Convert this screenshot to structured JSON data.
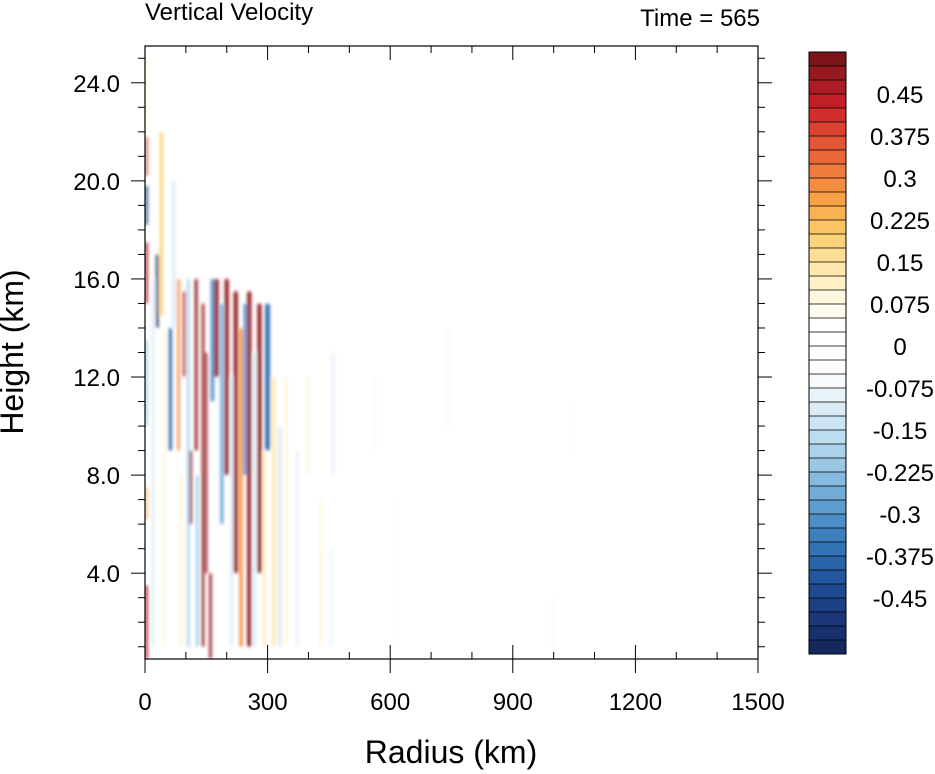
{
  "chart_data": {
    "type": "heatmap",
    "title": "Vertical Velocity",
    "time_label": "Time = 565",
    "xlabel": "Radius (km)",
    "ylabel": "Height (km)",
    "xlim": [
      0,
      1500
    ],
    "ylim": [
      0.5,
      25.5
    ],
    "x_ticks": [
      {
        "value": 0,
        "label": "0"
      },
      {
        "value": 300,
        "label": "300"
      },
      {
        "value": 600,
        "label": "600"
      },
      {
        "value": 900,
        "label": "900"
      },
      {
        "value": 1200,
        "label": "1200"
      },
      {
        "value": 1500,
        "label": "1500"
      }
    ],
    "y_ticks": [
      {
        "value": 4,
        "label": "4.0"
      },
      {
        "value": 8,
        "label": "8.0"
      },
      {
        "value": 12,
        "label": "12.0"
      },
      {
        "value": 16,
        "label": "16.0"
      },
      {
        "value": 20,
        "label": "20.0"
      },
      {
        "value": 24,
        "label": "24.0"
      }
    ],
    "colorbar": {
      "levels_top_to_bottom": [
        0.525,
        0.5,
        0.475,
        0.45,
        0.425,
        0.4,
        0.375,
        0.35,
        0.325,
        0.3,
        0.275,
        0.25,
        0.225,
        0.2,
        0.175,
        0.15,
        0.125,
        0.1,
        0.075,
        0.05,
        0.025,
        0,
        -0.025,
        -0.05,
        -0.075,
        -0.1,
        -0.125,
        -0.15,
        -0.175,
        -0.2,
        -0.225,
        -0.25,
        -0.275,
        -0.3,
        -0.325,
        -0.35,
        -0.375,
        -0.4,
        -0.425,
        -0.45,
        -0.475,
        -0.5,
        -0.525
      ],
      "colors_top_to_bottom": [
        "#7a1418",
        "#941a1f",
        "#ab1c24",
        "#c21f28",
        "#d02f2b",
        "#dc4230",
        "#e45535",
        "#ea6838",
        "#ef7b3c",
        "#f48d40",
        "#f7a045",
        "#f9b251",
        "#fbc363",
        "#fcd27a",
        "#fdde94",
        "#fee8ae",
        "#fff0c6",
        "#fff7dd",
        "#fffcf0",
        "#ffffff",
        "#ffffff",
        "#ffffff",
        "#ffffff",
        "#f6fafd",
        "#e9f3fa",
        "#dbecf7",
        "#cce4f3",
        "#bcdcef",
        "#abd2ea",
        "#99c7e4",
        "#86bade",
        "#72acd7",
        "#5e9dcf",
        "#4c8ec6",
        "#3e80bd",
        "#3372b3",
        "#2963a8",
        "#22569d",
        "#1d4a90",
        "#1b4084",
        "#1a3878",
        "#18306d",
        "#15295f"
      ],
      "labels": [
        {
          "level": 0.45,
          "text": "0.45"
        },
        {
          "level": 0.375,
          "text": "0.375"
        },
        {
          "level": 0.3,
          "text": "0.3"
        },
        {
          "level": 0.225,
          "text": "0.225"
        },
        {
          "level": 0.15,
          "text": "0.15"
        },
        {
          "level": 0.075,
          "text": "0.075"
        },
        {
          "level": 0,
          "text": "0"
        },
        {
          "level": -0.075,
          "text": "-0.075"
        },
        {
          "level": -0.15,
          "text": "-0.15"
        },
        {
          "level": -0.225,
          "text": "-0.225"
        },
        {
          "level": -0.3,
          "text": "-0.3"
        },
        {
          "level": -0.375,
          "text": "-0.375"
        },
        {
          "level": -0.45,
          "text": "-0.45"
        }
      ]
    },
    "field_features": [
      {
        "r": 4,
        "z0": 0.5,
        "z1": 3.5,
        "w": 6,
        "value": 0.45
      },
      {
        "r": 4,
        "z0": 6.2,
        "z1": 7.5,
        "w": 5,
        "value": 0.25
      },
      {
        "r": 4,
        "z0": 10,
        "z1": 13.5,
        "w": 5,
        "value": -0.2
      },
      {
        "r": 4,
        "z0": 15,
        "z1": 17.5,
        "w": 6,
        "value": 0.45
      },
      {
        "r": 4,
        "z0": 18.2,
        "z1": 19.8,
        "w": 6,
        "value": -0.4
      },
      {
        "r": 4,
        "z0": 20.2,
        "z1": 21.8,
        "w": 5,
        "value": 0.4
      },
      {
        "r": 6,
        "z0": 22,
        "z1": 25,
        "w": 4,
        "value": 0.1
      },
      {
        "r": 20,
        "z0": 1,
        "z1": 16,
        "w": 6,
        "value": -0.1
      },
      {
        "r": 30,
        "z0": 14,
        "z1": 17,
        "w": 6,
        "value": -0.5
      },
      {
        "r": 40,
        "z0": 14.5,
        "z1": 22,
        "w": 8,
        "value": 0.2
      },
      {
        "r": 48,
        "z0": 1,
        "z1": 14,
        "w": 6,
        "value": 0.1
      },
      {
        "r": 62,
        "z0": 9,
        "z1": 14,
        "w": 8,
        "value": -0.35
      },
      {
        "r": 70,
        "z0": 14,
        "z1": 20,
        "w": 8,
        "value": -0.1
      },
      {
        "r": 82,
        "z0": 9,
        "z1": 16,
        "w": 6,
        "value": 0.3
      },
      {
        "r": 88,
        "z0": 1,
        "z1": 8,
        "w": 8,
        "value": 0.1
      },
      {
        "r": 96,
        "z0": 12,
        "z1": 15.5,
        "w": 6,
        "value": 0.45
      },
      {
        "r": 106,
        "z0": 1,
        "z1": 16,
        "w": 8,
        "value": -0.15
      },
      {
        "r": 112,
        "z0": 6,
        "z1": 9,
        "w": 6,
        "value": 0.5
      },
      {
        "r": 125,
        "z0": 9,
        "z1": 16,
        "w": 7,
        "value": 0.5
      },
      {
        "r": 128,
        "z0": 1,
        "z1": 8,
        "w": 6,
        "value": -0.2
      },
      {
        "r": 142,
        "z0": 1,
        "z1": 15,
        "w": 6,
        "value": 0.5
      },
      {
        "r": 150,
        "z0": 4,
        "z1": 13,
        "w": 5,
        "value": 0.5
      },
      {
        "r": 160,
        "z0": 0.5,
        "z1": 4,
        "w": 6,
        "value": 0.5
      },
      {
        "r": 165,
        "z0": 11,
        "z1": 16,
        "w": 8,
        "value": -0.3
      },
      {
        "r": 175,
        "z0": 12,
        "z1": 16,
        "w": 10,
        "value": 0.5
      },
      {
        "r": 188,
        "z0": 6,
        "z1": 15,
        "w": 8,
        "value": -0.25
      },
      {
        "r": 200,
        "z0": 8,
        "z1": 16,
        "w": 10,
        "value": 0.5
      },
      {
        "r": 212,
        "z0": 1,
        "z1": 12,
        "w": 6,
        "value": -0.1
      },
      {
        "r": 222,
        "z0": 4,
        "z1": 15.5,
        "w": 10,
        "value": 0.5
      },
      {
        "r": 235,
        "z0": 1,
        "z1": 14,
        "w": 8,
        "value": 0.3
      },
      {
        "r": 245,
        "z0": 8,
        "z1": 15,
        "w": 7,
        "value": -0.3
      },
      {
        "r": 255,
        "z0": 1,
        "z1": 15.5,
        "w": 10,
        "value": 0.5
      },
      {
        "r": 268,
        "z0": 1,
        "z1": 13,
        "w": 7,
        "value": -0.1
      },
      {
        "r": 280,
        "z0": 4,
        "z1": 15,
        "w": 10,
        "value": 0.5
      },
      {
        "r": 292,
        "z0": 1,
        "z1": 9,
        "w": 6,
        "value": 0.15
      },
      {
        "r": 300,
        "z0": 9,
        "z1": 15,
        "w": 12,
        "value": -0.35
      },
      {
        "r": 315,
        "z0": 1,
        "z1": 12,
        "w": 8,
        "value": 0.15
      },
      {
        "r": 330,
        "z0": 1,
        "z1": 10,
        "w": 10,
        "value": -0.1
      },
      {
        "r": 345,
        "z0": 1,
        "z1": 12,
        "w": 8,
        "value": 0.1
      },
      {
        "r": 372,
        "z0": 1,
        "z1": 9,
        "w": 8,
        "value": -0.08
      },
      {
        "r": 400,
        "z0": 8,
        "z1": 12,
        "w": 8,
        "value": 0.08
      },
      {
        "r": 430,
        "z0": 1,
        "z1": 7,
        "w": 8,
        "value": 0.08
      },
      {
        "r": 455,
        "z0": 1,
        "z1": 5,
        "w": 6,
        "value": -0.08
      },
      {
        "r": 460,
        "z0": 8,
        "z1": 13,
        "w": 8,
        "value": -0.08
      },
      {
        "r": 560,
        "z0": 9,
        "z1": 12,
        "w": 8,
        "value": -0.07
      },
      {
        "r": 620,
        "z0": 1,
        "z1": 7,
        "w": 6,
        "value": 0.07
      },
      {
        "r": 740,
        "z0": 10,
        "z1": 14,
        "w": 8,
        "value": -0.07
      },
      {
        "r": 1000,
        "z0": 1,
        "z1": 3,
        "w": 6,
        "value": -0.06
      },
      {
        "r": 1050,
        "z0": 9,
        "z1": 11,
        "w": 6,
        "value": 0.06
      }
    ]
  }
}
